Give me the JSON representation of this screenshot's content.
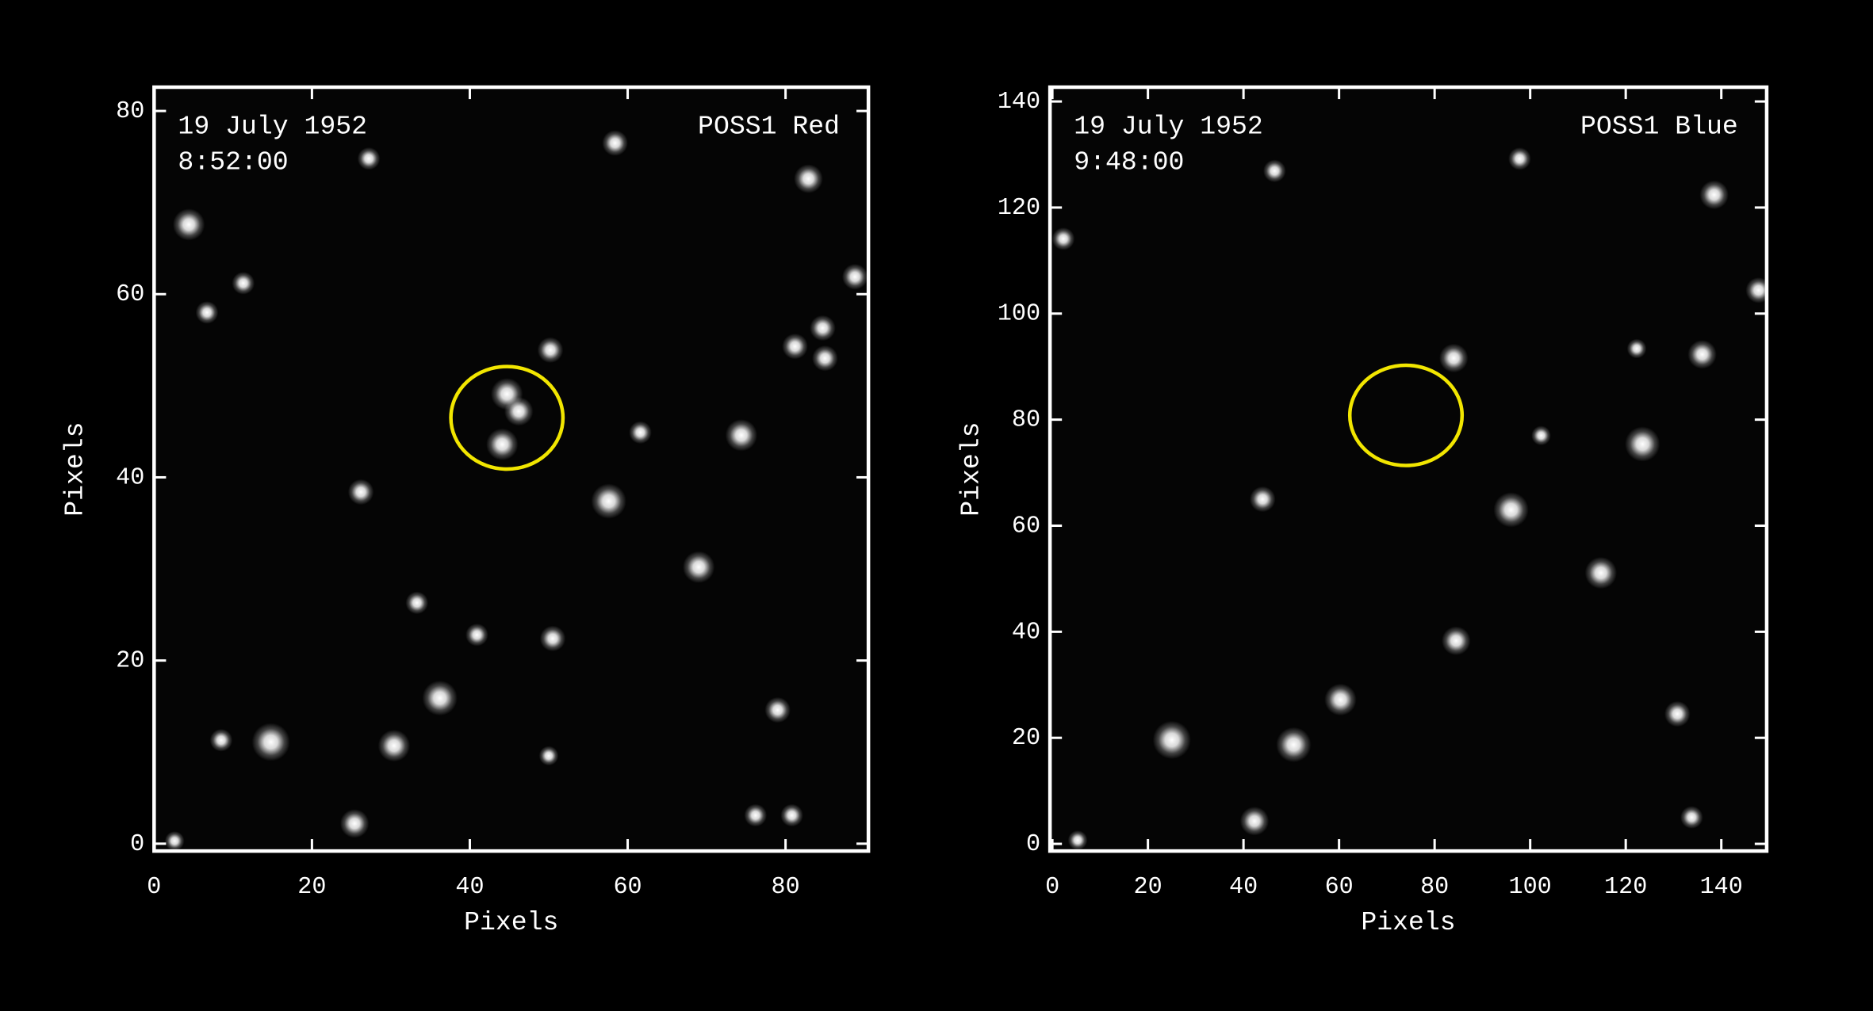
{
  "chart_data": [
    {
      "type": "scatter",
      "annotations": [
        "19 July 1952",
        "8:52:00",
        "POSS1 Red"
      ],
      "xlabel": "Pixels",
      "ylabel": "Pixels",
      "xlim": [
        0,
        90.5
      ],
      "ylim": [
        -0.8,
        82.6
      ],
      "xticks": [
        0,
        20,
        40,
        60,
        80
      ],
      "yticks": [
        0,
        20,
        40,
        60,
        80
      ],
      "x": [
        14.8,
        36.2,
        30.4,
        25.4,
        57.6,
        74.4,
        69.0,
        50.5,
        50.2,
        44.7,
        44.1,
        46.2,
        26.2,
        4.4,
        82.9,
        58.4,
        27.2,
        88.8,
        81.2,
        84.7,
        85.0,
        79.0,
        40.9,
        33.3,
        61.6,
        11.3,
        6.7,
        8.5,
        80.8,
        76.2,
        50.0,
        2.6
      ],
      "y": [
        11.1,
        15.9,
        10.7,
        2.2,
        37.4,
        44.6,
        30.2,
        22.4,
        53.9,
        49.1,
        43.6,
        47.2,
        38.4,
        67.6,
        72.6,
        76.5,
        74.8,
        61.9,
        54.3,
        56.3,
        53.0,
        14.6,
        22.8,
        26.3,
        44.9,
        61.2,
        58.0,
        11.3,
        3.1,
        3.1,
        9.6,
        0.3
      ],
      "sizes": [
        5,
        4.5,
        4,
        3.5,
        4.5,
        4,
        4,
        3,
        3,
        4,
        4,
        3.5,
        3,
        4,
        3.5,
        3,
        2.5,
        3,
        3,
        3,
        3,
        3,
        2.5,
        2.5,
        2.5,
        2.5,
        2.5,
        2.5,
        2.5,
        2.5,
        2,
        2
      ],
      "color": "#ffffff",
      "circle": {
        "x": 44.7,
        "y": 46.5,
        "rx": 7.1,
        "ry": 5.6,
        "color": "#f2e600"
      }
    },
    {
      "type": "scatter",
      "annotations": [
        "19 July 1952",
        "9:48:00",
        "POSS1 Blue"
      ],
      "xlabel": "Pixels",
      "ylabel": "Pixels",
      "xlim": [
        -0.5,
        149.5
      ],
      "ylim": [
        -1.35,
        142.7
      ],
      "xticks": [
        0,
        20,
        40,
        60,
        80,
        100,
        120,
        140
      ],
      "yticks": [
        0,
        20,
        40,
        60,
        80,
        100,
        120,
        140
      ],
      "x": [
        25.0,
        50.5,
        60.3,
        42.3,
        84.5,
        96.0,
        123.5,
        114.8,
        84.0,
        136.0,
        138.5,
        97.8,
        44.0,
        130.8,
        147.8,
        46.5,
        2.3,
        133.8,
        5.3,
        122.3,
        102.3
      ],
      "y": [
        19.6,
        18.7,
        27.2,
        4.3,
        38.3,
        63.0,
        75.4,
        51.1,
        91.6,
        92.3,
        122.4,
        129.2,
        65.0,
        24.5,
        104.4,
        126.9,
        114.1,
        5.0,
        0.7,
        93.4,
        77.0
      ],
      "sizes": [
        5,
        4.5,
        4,
        3.5,
        3.5,
        4.5,
        4.5,
        4,
        3.5,
        3.5,
        3.5,
        2.5,
        3,
        3,
        3,
        2.5,
        2.5,
        2.5,
        2,
        2,
        2
      ],
      "color": "#ffffff",
      "circle": {
        "x": 74.0,
        "y": 80.8,
        "rx": 11.75,
        "ry": 9.45,
        "color": "#f2e600"
      }
    }
  ]
}
